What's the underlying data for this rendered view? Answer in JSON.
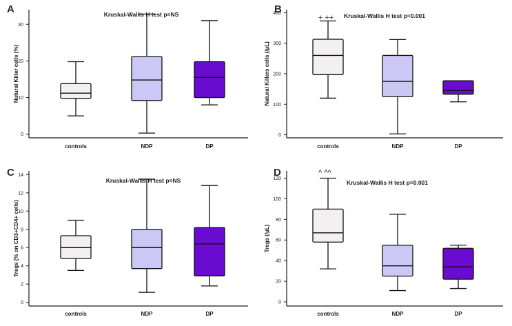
{
  "chart_data": [
    {
      "type": "box",
      "panel": "A",
      "title": "Kruskal-Wallis H test    p=NS",
      "ylabel": "Natural Killer cells (%)",
      "categories": [
        "controls",
        "NDP",
        "DP"
      ],
      "yticks": [
        0,
        10,
        20,
        30
      ],
      "ylim": [
        -1,
        34
      ],
      "boxes": [
        {
          "min": 5,
          "q1": 9.8,
          "median": 11.2,
          "q3": 13.8,
          "max": 19.8
        },
        {
          "min": 0.3,
          "q1": 9.2,
          "median": 14.8,
          "q3": 21.2,
          "max": 32.8
        },
        {
          "min": 8,
          "q1": 10,
          "median": 15.5,
          "q3": 19.8,
          "max": 31
        }
      ],
      "annotation": ""
    },
    {
      "type": "box",
      "panel": "B",
      "title": "Kruskal-Wallis H test    p=0.001",
      "ylabel": "Natural Killers cells (/µL)",
      "categories": [
        "controls",
        "NDP",
        "DP"
      ],
      "yticks": [
        0,
        100,
        200,
        300,
        400
      ],
      "ylim": [
        -10,
        410
      ],
      "boxes": [
        {
          "min": 120,
          "q1": 197,
          "median": 260,
          "q3": 313,
          "max": 373
        },
        {
          "min": 3,
          "q1": 125,
          "median": 175,
          "q3": 260,
          "max": 312
        },
        {
          "min": 108,
          "q1": 133,
          "median": 145,
          "q3": 177,
          "max": 177
        }
      ],
      "annotation": "+ ++"
    },
    {
      "type": "box",
      "panel": "C",
      "title": "Kruskal-Wallis H test p=NS",
      "ylabel": "Tregs (% on CD3+CD4+ cells)",
      "categories": [
        "controls",
        "NDP",
        "DP"
      ],
      "yticks": [
        0,
        2,
        4,
        6,
        8,
        10,
        12,
        14
      ],
      "ylim": [
        -0.4,
        14.4
      ],
      "boxes": [
        {
          "min": 3.5,
          "q1": 4.8,
          "median": 6,
          "q3": 7.3,
          "max": 9
        },
        {
          "min": 1.1,
          "q1": 3.7,
          "median": 6,
          "q3": 8,
          "max": 13.5
        },
        {
          "min": 1.8,
          "q1": 2.9,
          "median": 6.4,
          "q3": 8.2,
          "max": 12.8
        }
      ],
      "annotation": ""
    },
    {
      "type": "box",
      "panel": "D",
      "title": "Kruskal-Wallis H test  p=0.001",
      "ylabel": "Tregs (/µL)",
      "categories": [
        "controls",
        "NDP",
        "DP"
      ],
      "yticks": [
        0,
        20,
        40,
        60,
        80,
        100,
        120
      ],
      "ylim": [
        -4,
        127
      ],
      "boxes": [
        {
          "min": 32,
          "q1": 58,
          "median": 67,
          "q3": 90,
          "max": 120
        },
        {
          "min": 11,
          "q1": 25,
          "median": 35,
          "q3": 55,
          "max": 85
        },
        {
          "min": 13,
          "q1": 22,
          "median": 34,
          "q3": 52,
          "max": 55
        }
      ],
      "annotation": "^  ^^"
    }
  ],
  "colors": {
    "box_fill": [
      "#f2f0f0",
      "#cbc8f5",
      "#6a0ccf"
    ],
    "axis": "#1a1a1a"
  }
}
